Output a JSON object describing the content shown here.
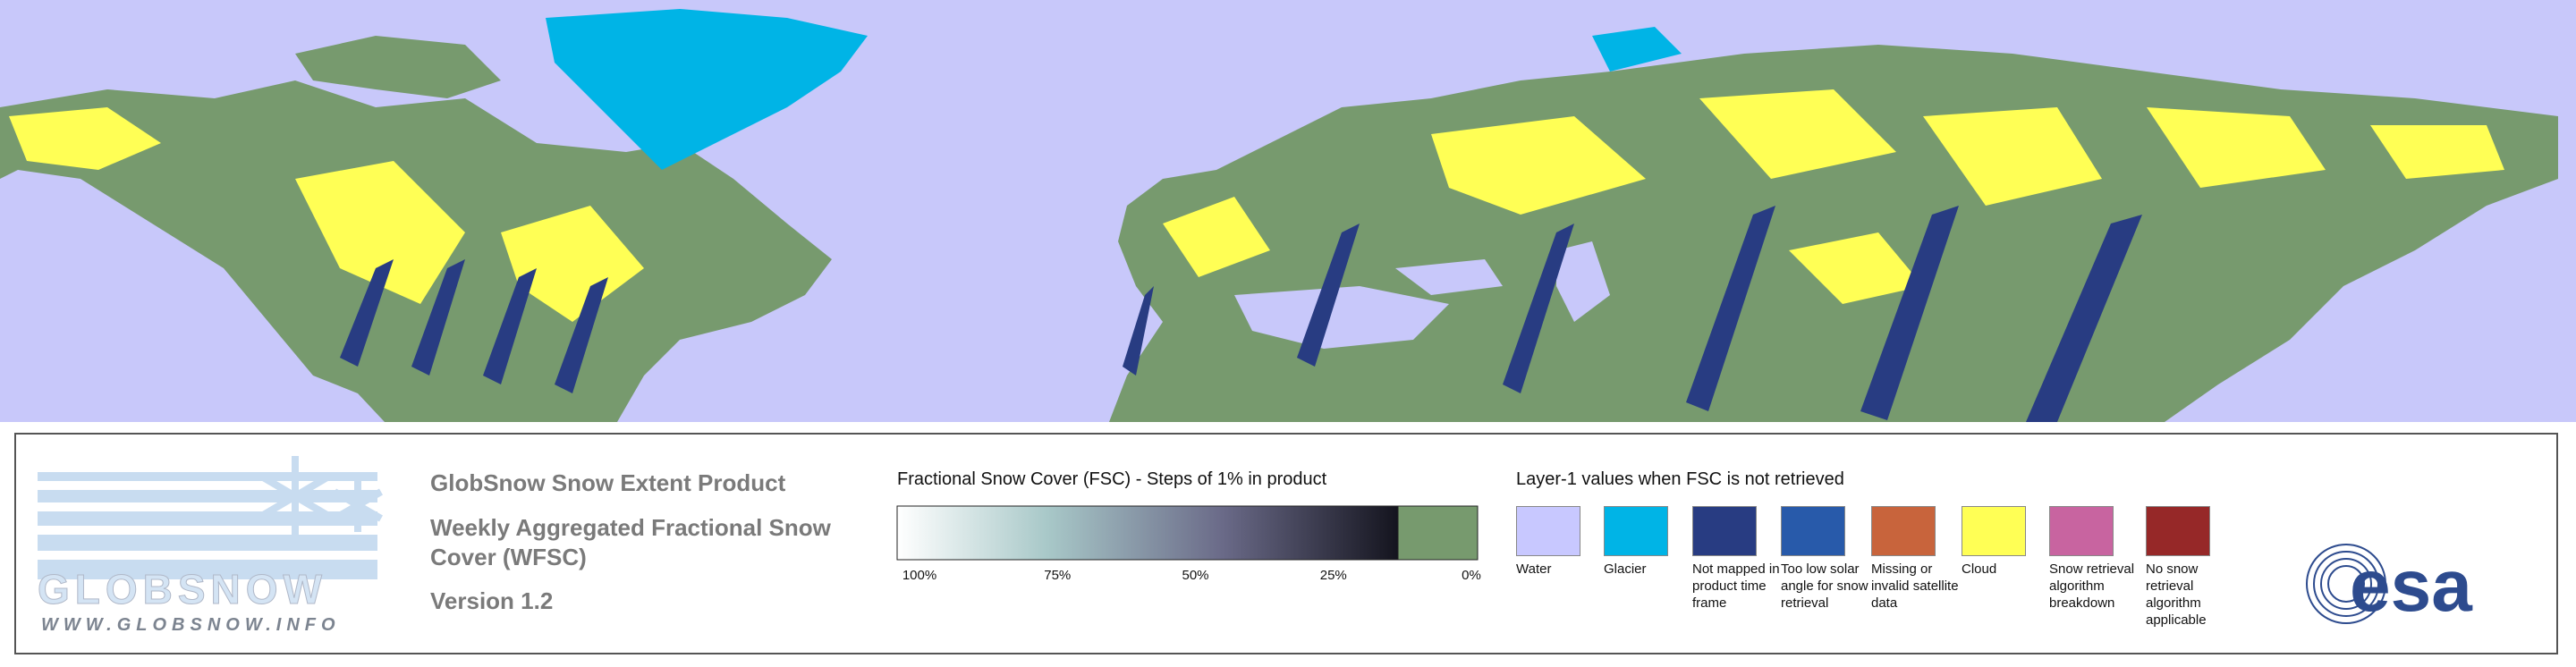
{
  "logo": {
    "name": "GLOBSNOW",
    "url": "WWW.GLOBSNOW.INFO"
  },
  "product": {
    "title": "GlobSnow Snow Extent Product",
    "subtitle": "Weekly Aggregated Fractional Snow Cover (WFSC)",
    "version": "Version 1.2"
  },
  "fsc_legend": {
    "title": "Fractional Snow Cover (FSC) - Steps of 1% in product",
    "ticks": [
      "100%",
      "75%",
      "50%",
      "25%",
      "0%"
    ]
  },
  "layer1_legend": {
    "title": "Layer-1 values when FSC is not retrieved",
    "items": [
      {
        "label": "Water",
        "color": "#c8c8ff"
      },
      {
        "label": "Glacier",
        "color": "#00b4e6"
      },
      {
        "label": "Not mapped in product time frame",
        "color": "#283c82"
      },
      {
        "label": "Too low solar angle for snow retrieval",
        "color": "#285aaa"
      },
      {
        "label": "Missing or invalid satellite data",
        "color": "#c8643c"
      },
      {
        "label": "Cloud",
        "color": "#ffff55"
      },
      {
        "label": "Snow retrieval algorithm breakdown",
        "color": "#c864a0"
      },
      {
        "label": "No snow retrieval algorithm applicable",
        "color": "#962828"
      }
    ]
  },
  "esa_logo": "esa"
}
